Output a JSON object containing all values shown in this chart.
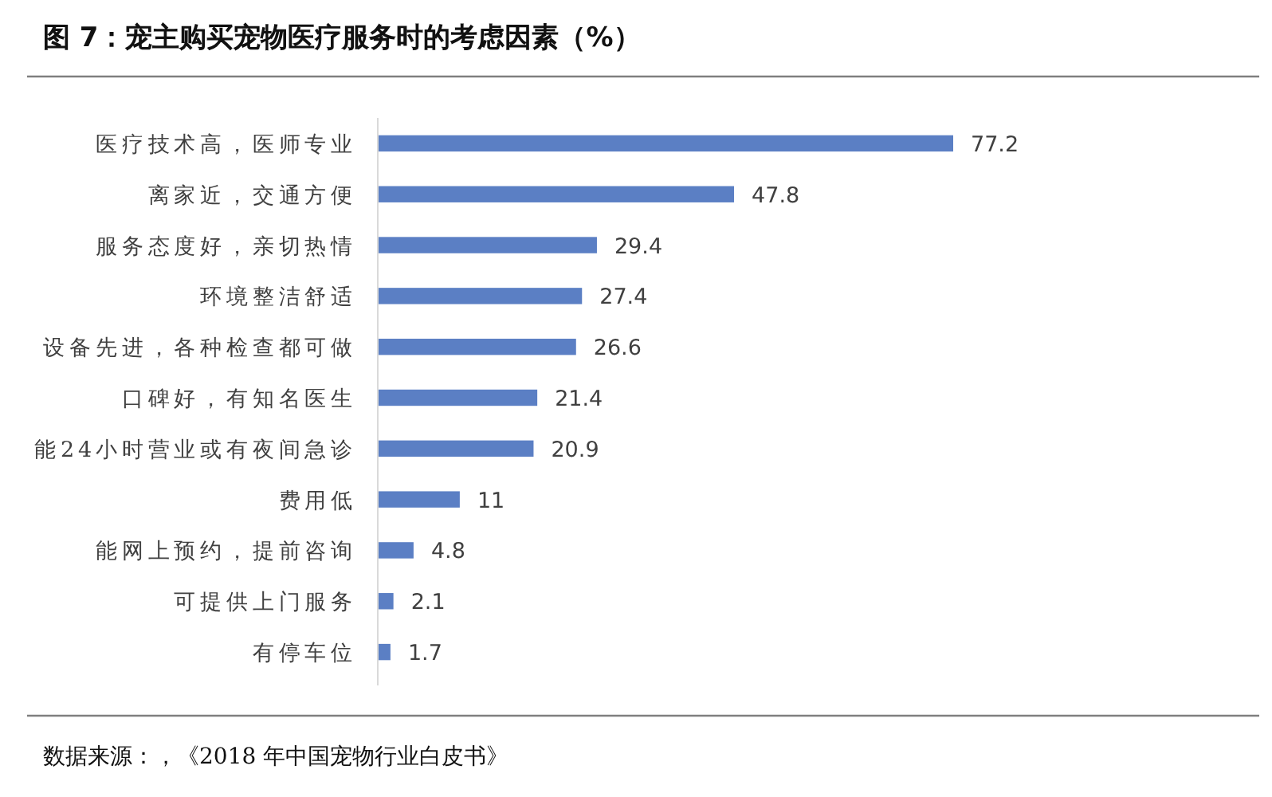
{
  "chart_data": {
    "type": "bar",
    "orientation": "horizontal",
    "title": "图 7：宠主购买宠物医疗服务时的考虑因素（%）",
    "categories": [
      "医疗技术高，医师专业",
      "离家近，交通方便",
      "服务态度好，亲切热情",
      "环境整洁舒适",
      "设备先进，各种检查都可做",
      "口碑好，有知名医生",
      "能24小时营业或有夜间急诊",
      "费用低",
      "能网上预约，提前咨询",
      "可提供上门服务",
      "有停车位"
    ],
    "values": [
      77.2,
      47.8,
      29.4,
      27.4,
      26.6,
      21.4,
      20.9,
      11,
      4.8,
      2.1,
      1.7
    ],
    "color": "#5b7fc4",
    "data_labels": true,
    "annotations": [
      "数据来源：，《2018 年中国宠物行业白皮书》"
    ]
  }
}
